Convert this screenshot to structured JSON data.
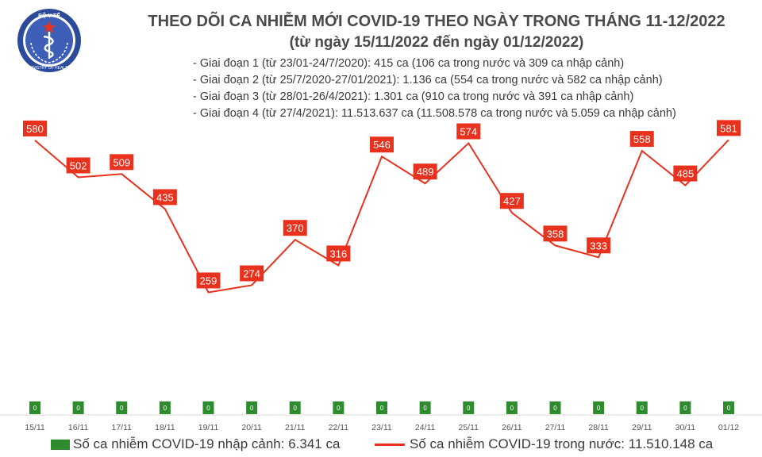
{
  "header": {
    "title": "THEO DÕI CA NHIỄM MỚI COVID-19 THEO NGÀY TRONG THÁNG 11-12/2022",
    "subtitle": "(từ ngày 15/11/2022 đến ngày 01/12/2022)",
    "stages": [
      "- Giai đoạn 1 (từ 23/01-24/7/2020): 415 ca (106 ca trong nước và 309 ca nhập cảnh)",
      "- Giai đoạn 2 (từ 25/7/2020-27/01/2021): 1.136 ca (554 ca trong nước và 582 ca nhập cảnh)",
      "- Giai đoạn 3 (từ 28/01-26/4/2021): 1.301 ca (910 ca trong nước và 391 ca nhập cảnh)",
      "- Giai đoạn 4 (từ 27/4/2021): 11.513.637 ca (11.508.578 ca trong nước và 5.059 ca nhập cảnh)"
    ]
  },
  "logo": {
    "top_text": "BỘ Y TẾ",
    "bottom_text": "MINISTRY OF HEALTH",
    "colors": {
      "ring": "#2b4a9a",
      "inner": "#3d5fb8",
      "star": "#e8321e",
      "symbol": "#ffffff"
    }
  },
  "legend": {
    "imported_label": "Số ca nhiễm COVID-19 nhập cảnh: 6.341 ca",
    "domestic_label": "Số ca nhiễm COVID-19 trong nước: 11.510.148 ca"
  },
  "colors": {
    "line": "#e8321e",
    "label_bg": "#e8321e",
    "label_text": "#ffffff",
    "bar": "#2e8b2e",
    "bar_label": "#ffffff",
    "title": "#4a4a4a"
  },
  "chart_data": {
    "type": "line",
    "categories": [
      "15/11",
      "16/11",
      "17/11",
      "18/11",
      "19/11",
      "20/11",
      "21/11",
      "22/11",
      "23/11",
      "24/11",
      "25/11",
      "26/11",
      "27/11",
      "28/11",
      "29/11",
      "30/11",
      "01/12"
    ],
    "series": [
      {
        "name": "Số ca nhiễm COVID-19 trong nước",
        "type": "line",
        "values": [
          580,
          502,
          509,
          435,
          259,
          274,
          370,
          316,
          546,
          489,
          574,
          427,
          358,
          333,
          558,
          485,
          581
        ]
      },
      {
        "name": "Số ca nhiễm COVID-19 nhập cảnh",
        "type": "bar",
        "values": [
          0,
          0,
          0,
          0,
          0,
          0,
          0,
          0,
          0,
          0,
          0,
          0,
          0,
          0,
          0,
          0,
          0
        ]
      }
    ],
    "ylim": [
      0,
      600
    ],
    "grid": false,
    "legend_position": "bottom"
  }
}
